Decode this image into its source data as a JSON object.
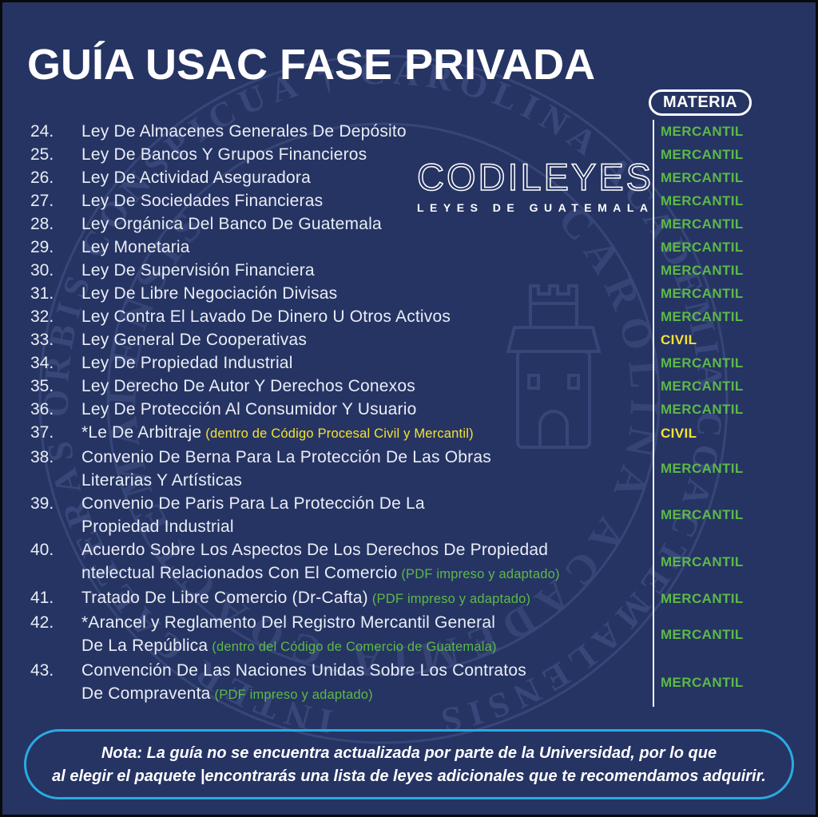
{
  "colors": {
    "background": "#263463",
    "watermark": "#3a4a7c",
    "green": "#5cb947",
    "yellow": "#f2e234",
    "note_border": "#29abe2",
    "white": "#ffffff",
    "list_text": "#e9edf6"
  },
  "header": {
    "title": "GUÍA USAC FASE PRIVADA",
    "materia_label": "MATERIA"
  },
  "logo": {
    "name": "CODILEYES",
    "tagline": "LEYES DE GUATEMALA"
  },
  "list": {
    "items": [
      {
        "num": "24.",
        "lines": [
          {
            "text": "Ley De Almacenes Generales De Depósito"
          }
        ],
        "materia": "MERCANTIL",
        "materia_color": "green"
      },
      {
        "num": "25.",
        "lines": [
          {
            "text": "Ley De Bancos Y Grupos Financieros"
          }
        ],
        "materia": "MERCANTIL",
        "materia_color": "green"
      },
      {
        "num": "26.",
        "lines": [
          {
            "text": "Ley De Actividad Aseguradora"
          }
        ],
        "materia": "MERCANTIL",
        "materia_color": "green"
      },
      {
        "num": "27.",
        "lines": [
          {
            "text": "Ley De Sociedades Financieras"
          }
        ],
        "materia": "MERCANTIL",
        "materia_color": "green"
      },
      {
        "num": "28.",
        "lines": [
          {
            "text": "Ley Orgánica Del Banco De Guatemala"
          }
        ],
        "materia": "MERCANTIL",
        "materia_color": "green"
      },
      {
        "num": "29.",
        "lines": [
          {
            "text": "Ley Monetaria"
          }
        ],
        "materia": "MERCANTIL",
        "materia_color": "green"
      },
      {
        "num": "30.",
        "lines": [
          {
            "text": "Ley De Supervisión Financiera"
          }
        ],
        "materia": "MERCANTIL",
        "materia_color": "green"
      },
      {
        "num": "31.",
        "lines": [
          {
            "text": "Ley De Libre Negociación Divisas"
          }
        ],
        "materia": "MERCANTIL",
        "materia_color": "green"
      },
      {
        "num": "32.",
        "lines": [
          {
            "text": "Ley Contra El Lavado De Dinero U Otros Activos"
          }
        ],
        "materia": "MERCANTIL",
        "materia_color": "green"
      },
      {
        "num": "33.",
        "lines": [
          {
            "text": "Ley General De Cooperativas"
          }
        ],
        "materia": "CIVIL",
        "materia_color": "yellow"
      },
      {
        "num": "34.",
        "lines": [
          {
            "text": "Ley De Propiedad Industrial"
          }
        ],
        "materia": "MERCANTIL",
        "materia_color": "green"
      },
      {
        "num": "35.",
        "lines": [
          {
            "text": "Ley Derecho De Autor Y Derechos Conexos"
          }
        ],
        "materia": "MERCANTIL",
        "materia_color": "green"
      },
      {
        "num": "36.",
        "lines": [
          {
            "text": "Ley De Protección Al Consumidor Y Usuario"
          }
        ],
        "materia": "MERCANTIL",
        "materia_color": "green"
      },
      {
        "num": "37.",
        "lines": [
          {
            "text": "*Le De Arbitraje",
            "note": "(dentro de Código Procesal Civil y Mercantil)",
            "note_color": "yellow"
          }
        ],
        "materia": "CIVIL",
        "materia_color": "yellow"
      },
      {
        "num": "38.",
        "lines": [
          {
            "text": "Convenio De Berna Para La Protección De Las Obras"
          },
          {
            "text": "Literarias Y Artísticas"
          }
        ],
        "materia": "MERCANTIL",
        "materia_color": "green"
      },
      {
        "num": "39.",
        "lines": [
          {
            "text": "Convenio De Paris Para La Protección De La"
          },
          {
            "text": "Propiedad Industrial"
          }
        ],
        "materia": "MERCANTIL",
        "materia_color": "green"
      },
      {
        "num": "40.",
        "lines": [
          {
            "text": "Acuerdo Sobre Los Aspectos De Los Derechos De Propiedad"
          },
          {
            "text": "ntelectual Relacionados Con El Comercio",
            "note": "(PDF impreso y adaptado)",
            "note_color": "green"
          }
        ],
        "materia": "MERCANTIL",
        "materia_color": "green"
      },
      {
        "num": "41.",
        "lines": [
          {
            "text": "Tratado De Libre Comercio (Dr-Cafta)",
            "note": "(PDF impreso y adaptado)",
            "note_color": "green"
          }
        ],
        "materia": "MERCANTIL",
        "materia_color": "green"
      },
      {
        "num": "42.",
        "lines": [
          {
            "text": "*Arancel y Reglamento Del Registro Mercantil General"
          },
          {
            "text": "De La República",
            "note": "(dentro del Código de Comercio de Guatemala)",
            "note_color": "green"
          }
        ],
        "materia": "MERCANTIL",
        "materia_color": "green"
      },
      {
        "num": "43.",
        "lines": [
          {
            "text": "Convención De Las Naciones Unidas Sobre Los Contratos"
          },
          {
            "text": "De Compraventa",
            "note": "(PDF impreso y adaptado)",
            "note_color": "green"
          }
        ],
        "materia": "MERCANTIL",
        "materia_color": "green"
      }
    ]
  },
  "note": {
    "line1": "Nota: La guía no se encuentra actualizada por parte de la Universidad, por lo que",
    "line2": "al elegir el paquete |encontrarás una lista de leyes adicionales que te recomendamos adquirir."
  },
  "watermark": {
    "outer_motto": "INTER CAETERAS ORBIS CONSPICUA † CAROLINA ACADEMIA COACTEMALENSIS",
    "inner_motto": "CAROLINA ACADEMIA COACTEMALENSIS"
  }
}
